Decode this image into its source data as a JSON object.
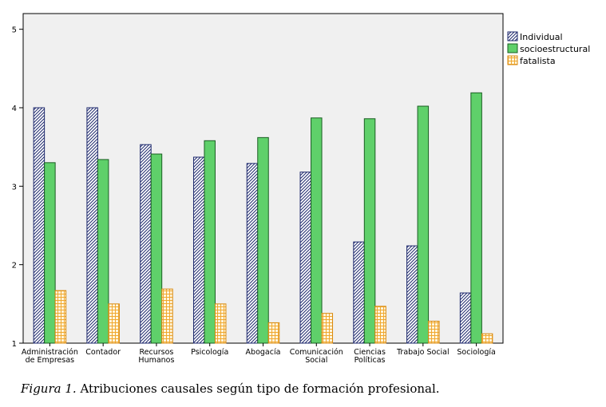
{
  "chart_data": {
    "type": "bar",
    "categories": [
      [
        "Administración",
        "de Empresas"
      ],
      [
        "Contador"
      ],
      [
        "Recursos",
        "Humanos"
      ],
      [
        "Psicología"
      ],
      [
        "Abogacía"
      ],
      [
        "Comunicación",
        "Social"
      ],
      [
        "Ciencias",
        "Políticas"
      ],
      [
        "Trabajo Social"
      ],
      [
        "Sociología"
      ]
    ],
    "series": [
      {
        "name": "Individual",
        "values": [
          4.0,
          4.0,
          3.53,
          3.37,
          3.29,
          3.18,
          2.29,
          2.24,
          1.64
        ],
        "pattern": "diagonal-hatch",
        "color": "#1f2a6e"
      },
      {
        "name": "socioestructural",
        "values": [
          3.3,
          3.34,
          3.41,
          3.58,
          3.62,
          3.87,
          3.86,
          4.02,
          4.19
        ],
        "pattern": "solid",
        "color": "#5fd06a"
      },
      {
        "name": "fatalista",
        "values": [
          1.67,
          1.5,
          1.69,
          1.5,
          1.26,
          1.38,
          1.47,
          1.28,
          1.12
        ],
        "pattern": "grid",
        "color": "#f0a830"
      }
    ],
    "y_ticks": [
      1,
      2,
      3,
      4,
      5
    ],
    "ylim": [
      1,
      5.2
    ],
    "legend_position": "top-right",
    "background": "#f0f0f0"
  },
  "caption": {
    "figure_label": "Figura 1.",
    "text": " Atribuciones causales según tipo de formación profesional."
  }
}
